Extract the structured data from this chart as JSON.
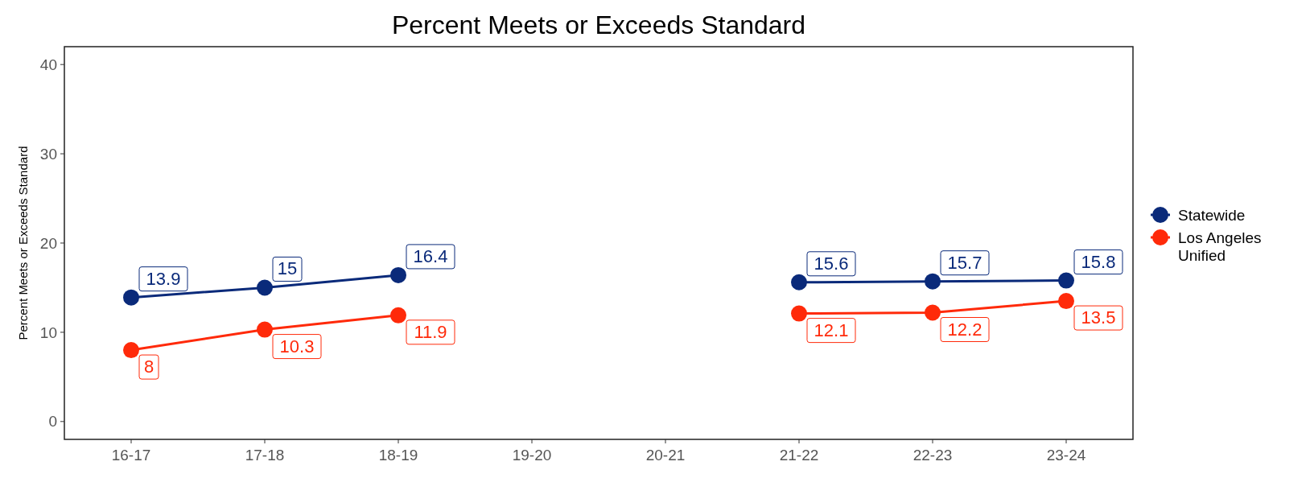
{
  "chart_data": {
    "type": "line",
    "title": "Percent Meets or Exceeds Standard",
    "ylabel": "Percent Meets or Exceeds Standard",
    "categories": [
      "16-17",
      "17-18",
      "18-19",
      "19-20",
      "20-21",
      "21-22",
      "22-23",
      "23-24"
    ],
    "series": [
      {
        "name": "Statewide",
        "color": "#0a2a7a",
        "values": [
          13.9,
          15,
          16.4,
          null,
          null,
          15.6,
          15.7,
          15.8
        ]
      },
      {
        "name": "Los Angeles Unified",
        "color": "#ff2a0a",
        "values": [
          8,
          10.3,
          11.9,
          null,
          null,
          12.1,
          12.2,
          13.5
        ]
      }
    ],
    "ylim": [
      -2,
      42
    ],
    "yticks": [
      0,
      10,
      20,
      30,
      40
    ],
    "grid": false,
    "legend": "right",
    "marker": "circle",
    "line_style": "solid",
    "data_labels": true
  }
}
